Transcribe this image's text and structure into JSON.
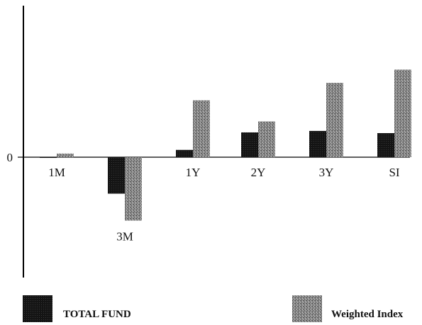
{
  "chart_data": {
    "type": "bar",
    "title": "",
    "xlabel": "",
    "ylabel": "",
    "categories": [
      "1M",
      "3M",
      "1Y",
      "2Y",
      "3Y",
      "SI"
    ],
    "series": [
      {
        "name": "TOTAL FUND",
        "color": "#111111",
        "values": [
          -0.1,
          -5.0,
          1.0,
          3.4,
          3.6,
          3.3
        ]
      },
      {
        "name": "Weighted Index",
        "color": "#8a8a8a",
        "values": [
          0.5,
          -8.7,
          7.8,
          4.9,
          10.2,
          12.0
        ]
      }
    ],
    "yticks": [
      0
    ],
    "ytick_labels": [
      "0"
    ],
    "ylim": [
      -12,
      15
    ],
    "grid": false,
    "legend": "bottom"
  }
}
